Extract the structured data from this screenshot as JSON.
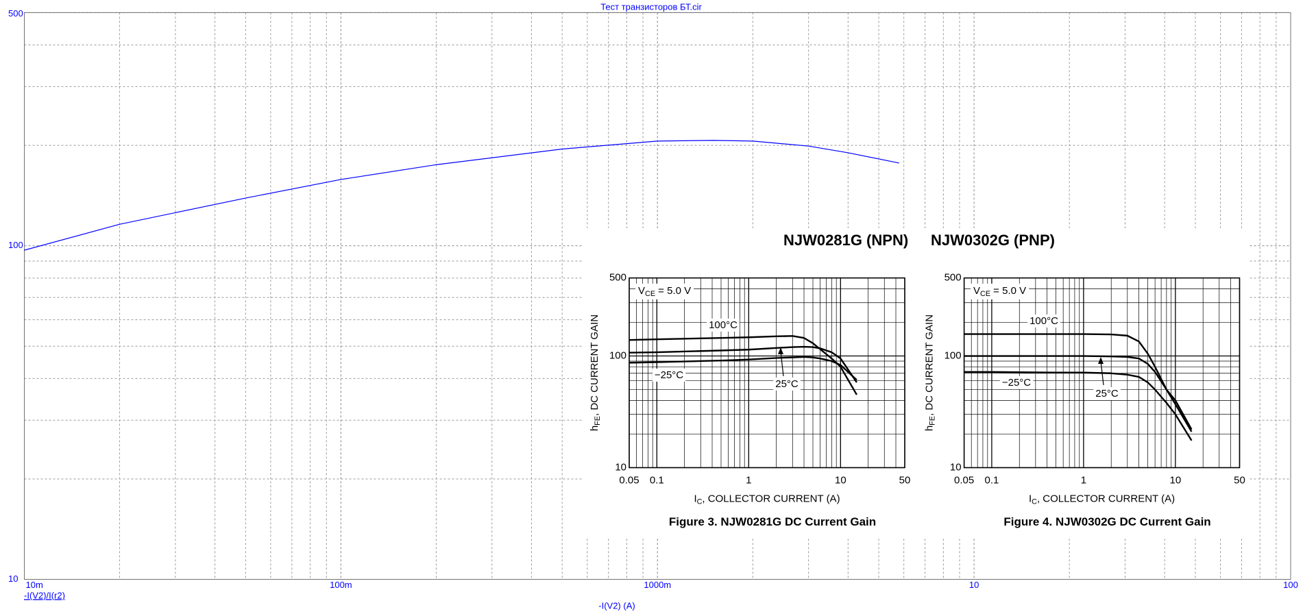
{
  "datasheet_heading": [
    "NJW0281G (NPN)",
    "NJW0302G (PNP)"
  ],
  "chart_data": [
    {
      "type": "line",
      "title": "Тест транзисторов БТ.cir",
      "x_label": "-I(V2) (A)",
      "xscale": "log",
      "yscale": "log",
      "grid": true,
      "xlim": [
        0.01,
        100
      ],
      "ylim": [
        10,
        500
      ],
      "xticks": [
        {
          "value": 0.01,
          "label": "10m"
        },
        {
          "value": 0.1,
          "label": "100m"
        },
        {
          "value": 1,
          "label": "1000m"
        },
        10,
        100
      ],
      "yticks": [
        10,
        100,
        500
      ],
      "series": [
        {
          "name": "-I(V2)/I(r2)",
          "color": "#0000ff",
          "x": [
            0.01,
            0.02,
            0.05,
            0.1,
            0.2,
            0.5,
            1,
            1.5,
            2,
            3,
            4,
            5.8
          ],
          "values": [
            97,
            116,
            139,
            158,
            175,
            195,
            206,
            207,
            206,
            199,
            190,
            177
          ]
        }
      ]
    },
    {
      "type": "line",
      "caption": "Figure 3. NJW0281G DC Current Gain",
      "annotation": {
        "main": "V",
        "sub": "CE",
        "rest": " = 5.0 V"
      },
      "x_label": {
        "main": "I",
        "sub": "C",
        "rest": ", COLLECTOR CURRENT (A)"
      },
      "y_label": {
        "main": "h",
        "sub": "FE",
        "rest": ", DC CURRENT GAIN"
      },
      "xscale": "log",
      "yscale": "log",
      "grid": true,
      "xlim": [
        0.05,
        50
      ],
      "ylim": [
        10,
        500
      ],
      "xticks": [
        0.05,
        0.1,
        1,
        10,
        50
      ],
      "yticks": [
        10,
        100,
        500
      ],
      "series": [
        {
          "name": "100°C",
          "color": "#000000",
          "x": [
            0.05,
            0.1,
            0.5,
            1,
            2,
            3,
            4,
            5,
            6,
            8,
            10,
            15
          ],
          "values": [
            139,
            141,
            145,
            147,
            150,
            151,
            145,
            130,
            115,
            95,
            80,
            45
          ]
        },
        {
          "name": "25°C",
          "color": "#000000",
          "x": [
            0.05,
            0.1,
            0.5,
            1,
            2,
            3,
            4,
            5,
            6,
            8,
            10,
            15
          ],
          "values": [
            107,
            108,
            112,
            114,
            118,
            120,
            121,
            120,
            117,
            108,
            95,
            58
          ]
        },
        {
          "name": "−25°C",
          "color": "#000000",
          "x": [
            0.05,
            0.1,
            0.5,
            1,
            2,
            3,
            4,
            5,
            6,
            8,
            10,
            15
          ],
          "values": [
            87,
            88,
            91,
            93,
            96,
            97,
            98,
            97,
            95,
            90,
            83,
            61
          ]
        }
      ]
    },
    {
      "type": "line",
      "caption": "Figure 4. NJW0302G DC Current Gain",
      "annotation": {
        "main": "V",
        "sub": "CE",
        "rest": " = 5.0 V"
      },
      "x_label": {
        "main": "I",
        "sub": "C",
        "rest": ", COLLECTOR CURRENT (A)"
      },
      "y_label": {
        "main": "h",
        "sub": "FE",
        "rest": ", DC CURRENT GAIN"
      },
      "xscale": "log",
      "yscale": "log",
      "grid": true,
      "xlim": [
        0.05,
        50
      ],
      "ylim": [
        10,
        500
      ],
      "xticks": [
        0.05,
        0.1,
        1,
        10,
        50
      ],
      "yticks": [
        10,
        100,
        500
      ],
      "series": [
        {
          "name": "100°C",
          "color": "#000000",
          "x": [
            0.05,
            0.1,
            0.5,
            1,
            2,
            3,
            4,
            5,
            6,
            8,
            10,
            15
          ],
          "values": [
            157,
            157,
            157,
            157,
            156,
            152,
            135,
            105,
            80,
            50,
            37,
            21
          ]
        },
        {
          "name": "25°C",
          "color": "#000000",
          "x": [
            0.05,
            0.1,
            0.5,
            1,
            2,
            3,
            4,
            5,
            6,
            8,
            10,
            15
          ],
          "values": [
            100,
            100,
            100,
            100,
            99,
            98,
            95,
            85,
            72,
            50,
            40,
            22
          ]
        },
        {
          "name": "−25°C",
          "color": "#000000",
          "x": [
            0.05,
            0.1,
            0.5,
            1,
            2,
            3,
            4,
            5,
            6,
            8,
            10,
            15
          ],
          "values": [
            72,
            72,
            71,
            71,
            70,
            68,
            65,
            58,
            50,
            38,
            30,
            17.5
          ]
        }
      ]
    }
  ]
}
